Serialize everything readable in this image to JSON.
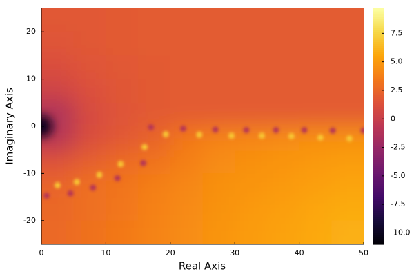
{
  "chart_data": {
    "type": "heatmap",
    "colormap": "inferno",
    "xlabel": "Real Axis",
    "ylabel": "Imaginary Axis",
    "xlim": [
      0,
      50
    ],
    "ylim": [
      -25,
      25
    ],
    "xticks": [
      0,
      10,
      20,
      30,
      40,
      50
    ],
    "yticks": [
      -20,
      -10,
      0,
      10,
      20
    ],
    "x": [
      2.5,
      7.5,
      12.5,
      17.5,
      22.5,
      27.5,
      32.5,
      37.5,
      42.5,
      47.5
    ],
    "y": [
      22.5,
      17.5,
      12.5,
      7.5,
      2.5,
      -2.5,
      -7.5,
      -12.5,
      -17.5,
      -22.5
    ],
    "z": [
      [
        1.8,
        1.8,
        1.9,
        2.0,
        2.0,
        2.0,
        2.0,
        2.0,
        2.0,
        2.0
      ],
      [
        1.6,
        1.8,
        1.9,
        2.0,
        2.0,
        2.0,
        2.0,
        2.0,
        2.0,
        2.0
      ],
      [
        1.2,
        1.6,
        1.8,
        1.9,
        2.0,
        2.0,
        2.0,
        2.0,
        2.0,
        2.0
      ],
      [
        0.5,
        1.3,
        1.7,
        1.9,
        2.0,
        2.0,
        2.0,
        2.0,
        2.0,
        2.0
      ],
      [
        -1.5,
        1.0,
        1.6,
        1.9,
        2.0,
        2.0,
        2.0,
        2.0,
        2.0,
        2.0
      ],
      [
        -1.0,
        1.2,
        1.8,
        2.4,
        3.5,
        4.0,
        4.2,
        4.4,
        4.6,
        4.7
      ],
      [
        1.5,
        2.2,
        2.8,
        3.2,
        3.8,
        4.4,
        4.6,
        4.8,
        5.0,
        5.2
      ],
      [
        2.5,
        3.0,
        3.3,
        3.8,
        4.2,
        4.6,
        4.8,
        5.0,
        5.3,
        5.5
      ],
      [
        2.6,
        3.0,
        3.4,
        3.9,
        4.3,
        4.7,
        5.0,
        5.3,
        5.6,
        5.8
      ],
      [
        2.7,
        3.1,
        3.5,
        4.0,
        4.4,
        4.8,
        5.1,
        5.4,
        5.7,
        6.0
      ]
    ],
    "spots": [
      {
        "x": [
          2.5,
          5.5,
          9,
          12.3,
          16,
          19.3,
          24.5,
          29.5,
          34.2,
          38.8,
          43.3,
          47.8
        ],
        "y": [
          -12.5,
          -11.8,
          -10.3,
          -8,
          -4.4,
          -1.7,
          -1.8,
          -2,
          -2,
          -2.1,
          -2.4,
          -2.6
        ],
        "values": [
          7,
          7,
          7,
          7,
          7,
          7,
          7,
          7,
          7,
          7,
          7,
          7
        ]
      },
      {
        "x": [
          0,
          0.8,
          4.5,
          8,
          11.8,
          15.8,
          17,
          22,
          27,
          31.8,
          36.4,
          40.8,
          45.2,
          50
        ],
        "y": [
          0,
          -14.7,
          -14.2,
          -13,
          -11,
          -7.8,
          -0.2,
          -0.5,
          -0.7,
          -0.8,
          -0.8,
          -0.8,
          -0.9,
          -0.9
        ],
        "values": [
          -10,
          -1,
          -1,
          -1,
          -1,
          -1,
          -1,
          -1,
          -1,
          -1,
          -1,
          -1,
          -1,
          -1
        ]
      }
    ],
    "clim": [
      -11,
      9.7
    ],
    "cticks": [
      {
        "value": -10,
        "label": "-10.0"
      },
      -7.5,
      {
        "value": -5,
        "label": "-5.0"
      },
      -2.5,
      0,
      2.5,
      {
        "value": 5,
        "label": "5.0"
      },
      7.5
    ]
  }
}
